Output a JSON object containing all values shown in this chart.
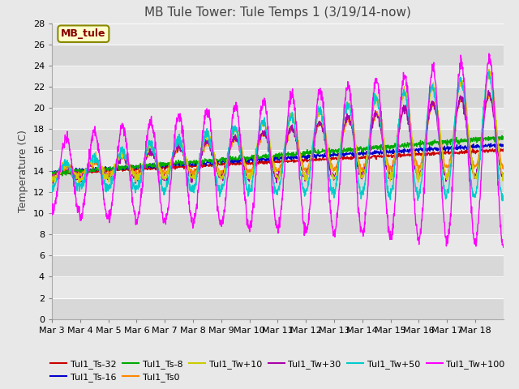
{
  "title": "MB Tule Tower: Tule Temps 1 (3/19/14-now)",
  "ylabel": "Temperature (C)",
  "ylim": [
    0,
    28
  ],
  "yticks": [
    0,
    2,
    4,
    6,
    8,
    10,
    12,
    14,
    16,
    18,
    20,
    22,
    24,
    26,
    28
  ],
  "xtick_labels": [
    "Mar 3",
    "Mar 4",
    "Mar 5",
    "Mar 6",
    "Mar 7",
    "Mar 8",
    "Mar 9",
    "Mar 10",
    "Mar 11",
    "Mar 12",
    "Mar 13",
    "Mar 14",
    "Mar 15",
    "Mar 16",
    "Mar 17",
    "Mar 18"
  ],
  "series_colors": {
    "Tul1_Ts-32": "#cc0000",
    "Tul1_Ts-16": "#0000cc",
    "Tul1_Ts-8": "#00aa00",
    "Tul1_Ts0": "#ff8800",
    "Tul1_Tw+10": "#cccc00",
    "Tul1_Tw+30": "#aa00aa",
    "Tul1_Tw+50": "#00cccc",
    "Tul1_Tw+100": "#ff00ff"
  },
  "legend_label": "MB_tule",
  "legend_label_color": "#880000",
  "legend_box_facecolor": "#ffffcc",
  "legend_box_edgecolor": "#888800",
  "fig_facecolor": "#e8e8e8",
  "ax_facecolor": "#e8e8e8",
  "band_colors": [
    "#d8d8d8",
    "#e8e8e8"
  ],
  "title_fontsize": 11,
  "ylabel_fontsize": 9,
  "tick_fontsize": 8,
  "legend_fontsize": 8
}
